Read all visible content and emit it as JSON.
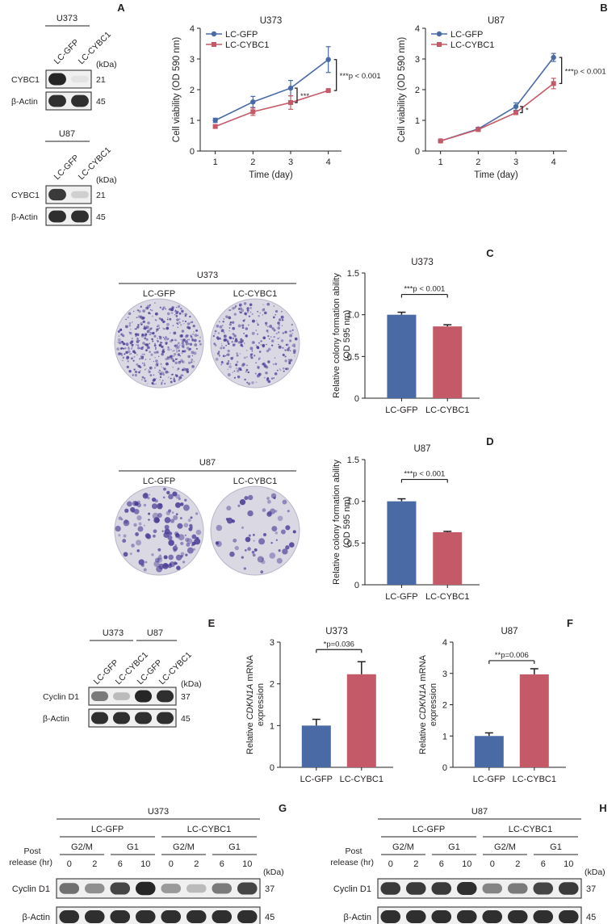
{
  "colors": {
    "gfp": "#4a6aa5",
    "cybc1": "#c45a67",
    "axis": "#231f20",
    "band": "#1a1a1a",
    "blot_bg": "#e6e6e6",
    "stain": "#4b3e96"
  },
  "panel_letters": [
    "A",
    "B",
    "C",
    "D",
    "E",
    "F",
    "G",
    "H"
  ],
  "blots_a": [
    {
      "cell": "U373",
      "lanes": [
        "LC-GFP",
        "LC-CYBC1"
      ],
      "kda_label": "(kDa)",
      "rows": [
        {
          "protein": "CYBC1",
          "kda": "21",
          "intensities": [
            0.95,
            0.06
          ]
        },
        {
          "protein": "β-Actin",
          "kda": "45",
          "intensities": [
            0.9,
            0.9
          ]
        }
      ]
    },
    {
      "cell": "U87",
      "lanes": [
        "LC-GFP",
        "LC-CYBC1"
      ],
      "kda_label": "(kDa)",
      "rows": [
        {
          "protein": "CYBC1",
          "kda": "21",
          "intensities": [
            0.85,
            0.15
          ]
        },
        {
          "protein": "β-Actin",
          "kda": "45",
          "intensities": [
            0.9,
            0.9
          ]
        }
      ]
    }
  ],
  "chart_data": [
    {
      "type": "line",
      "title": "U373",
      "xlabel": "Time (day)",
      "ylabel": "Cell viability (OD 590 nm)",
      "x": [
        1,
        2,
        3,
        4
      ],
      "ylim": [
        0,
        4
      ],
      "yticks": [
        0,
        1,
        2,
        3,
        4
      ],
      "legend_placement": "top-left",
      "series": [
        {
          "name": "LC-GFP",
          "values": [
            1.0,
            1.6,
            2.05,
            2.98
          ],
          "errors": [
            0.07,
            0.18,
            0.25,
            0.42
          ]
        },
        {
          "name": "LC-CYBC1",
          "values": [
            0.8,
            1.28,
            1.58,
            1.97
          ],
          "errors": [
            0.05,
            0.12,
            0.22,
            0.03
          ]
        }
      ],
      "annotations": [
        "***",
        "***p < 0.001"
      ]
    },
    {
      "type": "line",
      "title": "U87",
      "xlabel": "Time (day)",
      "ylabel": "Cell viability (OD 590 nm)",
      "x": [
        1,
        2,
        3,
        4
      ],
      "ylim": [
        0,
        4
      ],
      "yticks": [
        0,
        1,
        2,
        3,
        4
      ],
      "legend_placement": "top-left",
      "series": [
        {
          "name": "LC-GFP",
          "values": [
            0.33,
            0.72,
            1.45,
            3.05
          ],
          "errors": [
            0.03,
            0.05,
            0.12,
            0.13
          ]
        },
        {
          "name": "LC-CYBC1",
          "values": [
            0.33,
            0.7,
            1.25,
            2.2
          ],
          "errors": [
            0.03,
            0.05,
            0.05,
            0.17
          ]
        }
      ],
      "annotations": [
        "*",
        "***p < 0.001"
      ]
    },
    {
      "type": "bar",
      "title": "U373",
      "ylabel": "Relative colony formation ability (OD 595 nm)",
      "categories": [
        "LC-GFP",
        "LC-CYBC1"
      ],
      "values": [
        1.0,
        0.86
      ],
      "errors": [
        0.03,
        0.02
      ],
      "ylim": [
        0,
        1.5
      ],
      "yticks": [
        0,
        0.5,
        1.0,
        1.5
      ],
      "ytick_labels": [
        "0",
        "0.5",
        "1.0",
        "1.5"
      ],
      "annotation": "***p < 0.001"
    },
    {
      "type": "bar",
      "title": "U87",
      "ylabel": "Relative colony formation ability (OD 595 nm)",
      "categories": [
        "LC-GFP",
        "LC-CYBC1"
      ],
      "values": [
        1.0,
        0.63
      ],
      "errors": [
        0.03,
        0.01
      ],
      "ylim": [
        0,
        1.5
      ],
      "yticks": [
        0,
        0.5,
        1.0,
        1.5
      ],
      "ytick_labels": [
        "0",
        "0.5",
        "1.0",
        "1.5"
      ],
      "annotation": "***p < 0.001"
    },
    {
      "type": "bar",
      "title": "U373",
      "ylabel_pre": "Relative ",
      "ylabel_italic": "CDKN1A",
      "ylabel_post": " mRNA",
      "ylabel_line2": "expression",
      "categories": [
        "LC-GFP",
        "LC-CYBC1"
      ],
      "values": [
        1.0,
        2.23
      ],
      "errors": [
        0.15,
        0.3
      ],
      "ylim": [
        0,
        3
      ],
      "yticks": [
        0,
        1,
        2,
        3
      ],
      "ytick_labels": [
        "0",
        "1",
        "2",
        "3"
      ],
      "annotation": "*p=0.036"
    },
    {
      "type": "bar",
      "title": "U87",
      "ylabel_pre": "Relative ",
      "ylabel_italic": "CDKN1A",
      "ylabel_post": " mRNA",
      "ylabel_line2": "expression",
      "categories": [
        "LC-GFP",
        "LC-CYBC1"
      ],
      "values": [
        1.0,
        2.97
      ],
      "errors": [
        0.1,
        0.18
      ],
      "ylim": [
        0,
        4
      ],
      "yticks": [
        0,
        1,
        2,
        3,
        4
      ],
      "ytick_labels": [
        "0",
        "1",
        "2",
        "3",
        "4"
      ],
      "annotation": "**p=0.006"
    }
  ],
  "colony_c": {
    "cell": "U373",
    "groups": [
      "LC-GFP",
      "LC-CYBC1"
    ],
    "densities": [
      0.85,
      0.55
    ]
  },
  "colony_d": {
    "cell": "U87",
    "groups": [
      "LC-GFP",
      "LC-CYBC1"
    ],
    "densities": [
      0.8,
      0.35
    ]
  },
  "blot_e": {
    "cells": [
      "U373",
      "U87"
    ],
    "lanes": [
      "LC-GFP",
      "LC-CYBC1",
      "LC-GFP",
      "LC-CYBC1"
    ],
    "kda_label": "(kDa)",
    "rows": [
      {
        "protein": "Cyclin D1",
        "kda": "37",
        "intensities": [
          0.55,
          0.25,
          0.95,
          0.9
        ]
      },
      {
        "protein": "β-Actin",
        "kda": "45",
        "intensities": [
          0.9,
          0.9,
          0.9,
          0.9
        ]
      }
    ]
  },
  "blot_g": {
    "cell": "U373",
    "groups": [
      "LC-GFP",
      "LC-CYBC1"
    ],
    "phases": [
      "G2/M",
      "G1",
      "G2/M",
      "G1"
    ],
    "post_release": [
      "Post",
      "release (hr)"
    ],
    "times": [
      "0",
      "2",
      "6",
      "10",
      "0",
      "2",
      "6",
      "10"
    ],
    "kda_label": "(kDa)",
    "rows": [
      {
        "protein": "Cyclin D1",
        "kda": "37",
        "intensities": [
          0.6,
          0.45,
          0.8,
          0.95,
          0.4,
          0.25,
          0.55,
          0.8
        ]
      },
      {
        "protein": "β-Actin",
        "kda": "45",
        "intensities": [
          0.9,
          0.9,
          0.9,
          0.9,
          0.9,
          0.9,
          0.9,
          0.9
        ]
      }
    ]
  },
  "blot_h": {
    "cell": "U87",
    "groups": [
      "LC-GFP",
      "LC-CYBC1"
    ],
    "phases": [
      "G2/M",
      "G1",
      "G2/M",
      "G1"
    ],
    "post_release": [
      "Post",
      "release (hr)"
    ],
    "times": [
      "0",
      "2",
      "6",
      "10",
      "0",
      "2",
      "6",
      "10"
    ],
    "kda_label": "(kDa)",
    "rows": [
      {
        "protein": "Cyclin D1",
        "kda": "37",
        "intensities": [
          0.85,
          0.85,
          0.85,
          0.9,
          0.5,
          0.55,
          0.8,
          0.85
        ]
      },
      {
        "protein": "β-Actin",
        "kda": "45",
        "intensities": [
          0.9,
          0.9,
          0.9,
          0.9,
          0.9,
          0.9,
          0.9,
          0.9
        ]
      }
    ]
  }
}
